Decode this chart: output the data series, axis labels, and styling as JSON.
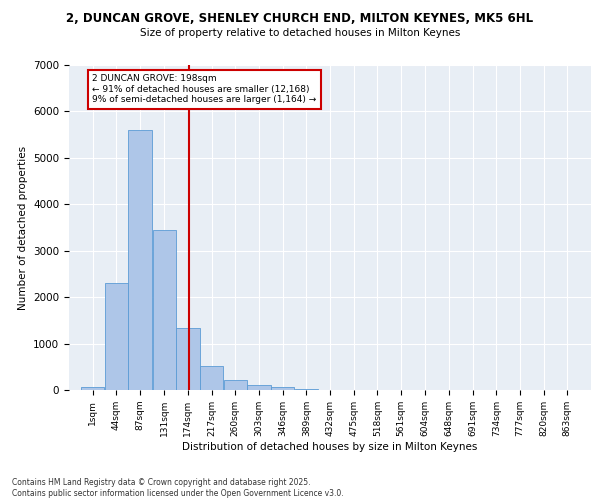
{
  "title_line1": "2, DUNCAN GROVE, SHENLEY CHURCH END, MILTON KEYNES, MK5 6HL",
  "title_line2": "Size of property relative to detached houses in Milton Keynes",
  "xlabel": "Distribution of detached houses by size in Milton Keynes",
  "ylabel": "Number of detached properties",
  "bins": [
    "1sqm",
    "44sqm",
    "87sqm",
    "131sqm",
    "174sqm",
    "217sqm",
    "260sqm",
    "303sqm",
    "346sqm",
    "389sqm",
    "432sqm",
    "475sqm",
    "518sqm",
    "561sqm",
    "604sqm",
    "648sqm",
    "691sqm",
    "734sqm",
    "777sqm",
    "820sqm",
    "863sqm"
  ],
  "bin_edges": [
    1,
    44,
    87,
    131,
    174,
    217,
    260,
    303,
    346,
    389,
    432,
    475,
    518,
    561,
    604,
    648,
    691,
    734,
    777,
    820,
    863
  ],
  "bar_heights": [
    75,
    2300,
    5600,
    3450,
    1330,
    520,
    210,
    100,
    55,
    30,
    10,
    5,
    3,
    2,
    1,
    1,
    0,
    0,
    0,
    0
  ],
  "bar_color": "#aec6e8",
  "bar_edge_color": "#5b9bd5",
  "property_size": 198,
  "annotation_line1": "2 DUNCAN GROVE: 198sqm",
  "annotation_line2": "← 91% of detached houses are smaller (12,168)",
  "annotation_line3": "9% of semi-detached houses are larger (1,164) →",
  "vline_color": "#cc0000",
  "annotation_box_color": "#cc0000",
  "bg_color": "#e8eef5",
  "ylim": [
    0,
    7000
  ],
  "yticks": [
    0,
    1000,
    2000,
    3000,
    4000,
    5000,
    6000,
    7000
  ],
  "footer_line1": "Contains HM Land Registry data © Crown copyright and database right 2025.",
  "footer_line2": "Contains public sector information licensed under the Open Government Licence v3.0."
}
